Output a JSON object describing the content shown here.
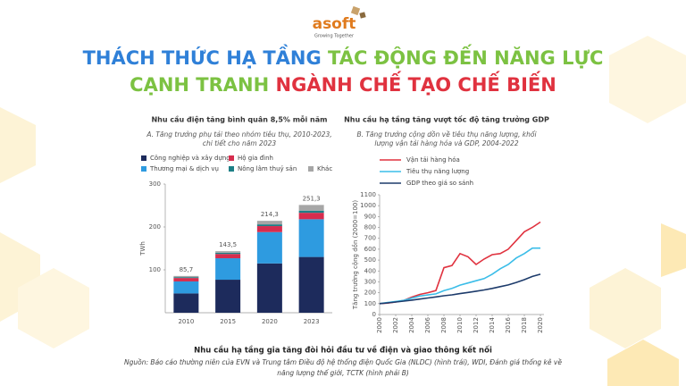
{
  "header": {
    "logo": "asoft",
    "tagline": "Growing Together",
    "title_parts": [
      "THÁCH THỨC HẠ TẦNG",
      "TÁC ĐỘNG ĐẾN NĂNG LỰC",
      "CẠNH TRANH",
      "NGÀNH CHẾ TẠO CHẾ BIẾN"
    ]
  },
  "chart_data": [
    {
      "type": "stacked_bar",
      "title": "Nhu cầu điện tăng bình quân 8,5% mỗi năm",
      "subtitle": [
        "A. Tăng trưởng phụ tải theo nhóm tiêu thụ, 2010-2023,",
        "chi tiết cho năm 2023"
      ],
      "y_label": "TWh",
      "categories": [
        "2010",
        "2015",
        "2020",
        "2023"
      ],
      "series": [
        {
          "name": "Công nghiệp và xây dựng",
          "color": "#1d2b5c",
          "values": [
            45,
            77,
            115,
            130
          ]
        },
        {
          "name": "Thương mại & dịch vụ",
          "color": "#2e9be0",
          "values": [
            28,
            50,
            73,
            88
          ]
        },
        {
          "name": "Hộ gia đình",
          "color": "#d62d4e",
          "values": [
            8,
            10,
            14,
            15
          ]
        },
        {
          "name": "Nông lâm thuỷ sản",
          "color": "#1d7f86",
          "values": [
            2,
            3,
            4,
            5
          ]
        },
        {
          "name": "Khác",
          "color": "#a6a6a6",
          "values": [
            2.7,
            3.5,
            8.3,
            13.3
          ]
        }
      ],
      "totals": [
        85.7,
        143.5,
        214.3,
        251.3
      ],
      "total_labels": [
        "85,7",
        "143,5",
        "214,3",
        "251,3"
      ],
      "ylim": [
        0,
        300
      ],
      "yticks": [
        100,
        200,
        300
      ],
      "grid": false
    },
    {
      "type": "line",
      "title": "Nhu cầu hạ tầng tăng vượt tốc độ tăng trưởng GDP",
      "subtitle": [
        "B. Tăng trưởng cộng dồn về tiêu thụ năng lượng, khối",
        "lượng vận tải hàng hóa và GDP, 2004-2022"
      ],
      "y_label": "Tăng trưởng cộng dồn (2000=100)",
      "x": [
        2000,
        2001,
        2002,
        2003,
        2004,
        2005,
        2006,
        2007,
        2008,
        2009,
        2010,
        2011,
        2012,
        2013,
        2014,
        2015,
        2016,
        2017,
        2018,
        2019,
        2020
      ],
      "series": [
        {
          "name": "Vận tải hàng hóa",
          "color": "#e0323f",
          "values": [
            100,
            105,
            115,
            130,
            160,
            185,
            200,
            220,
            430,
            450,
            560,
            530,
            460,
            510,
            550,
            560,
            600,
            680,
            760,
            800,
            850
          ]
        },
        {
          "name": "Tiêu thụ năng lượng",
          "color": "#3bbde8",
          "values": [
            100,
            110,
            120,
            130,
            150,
            170,
            180,
            190,
            220,
            240,
            270,
            290,
            310,
            330,
            370,
            420,
            460,
            520,
            560,
            610,
            610
          ]
        },
        {
          "name": "GDP theo giá so sánh",
          "color": "#1d3b6b",
          "values": [
            100,
            107,
            115,
            123,
            132,
            142,
            152,
            162,
            172,
            181,
            192,
            203,
            214,
            226,
            240,
            256,
            272,
            295,
            320,
            350,
            370
          ]
        }
      ],
      "xlim": [
        2000,
        2020
      ],
      "xticks": [
        2000,
        2002,
        2004,
        2006,
        2008,
        2010,
        2012,
        2014,
        2016,
        2018,
        2020
      ],
      "ylim": [
        0,
        1100
      ],
      "yticks": [
        0,
        100,
        200,
        300,
        400,
        500,
        600,
        700,
        800,
        900,
        1000,
        1100
      ],
      "legend": "top-left",
      "grid": false
    }
  ],
  "footer": {
    "caption": "Nhu cầu hạ tầng gia tăng đòi hỏi đầu tư về điện và giao thông kết nối",
    "source": [
      "Nguồn: Báo cáo thường niên của EVN và Trung tâm Điều độ hệ thống điện Quốc Gia (NLDC) (hình trái), WDI, Đánh giá thống kê về",
      "năng lượng thế giới, TCTK (hình phải B)"
    ]
  }
}
